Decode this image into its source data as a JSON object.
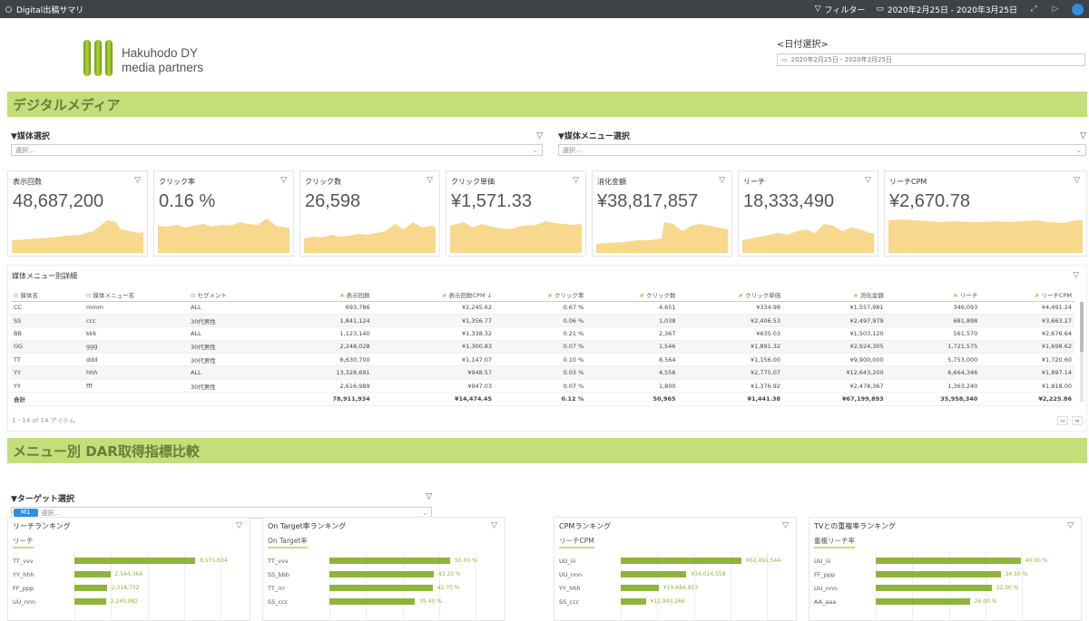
{
  "topbar": {
    "title": "Digital出稿サマリ",
    "filter_label": "フィルター",
    "date_range": "2020年2月25日 - 2020年3月25日"
  },
  "logo": {
    "line1": "Hakuhodo DY",
    "line2": "media partners"
  },
  "date_select": {
    "label": "<日付選択>",
    "value": "2020年2月25日 - 2020年3月25日"
  },
  "section1": {
    "title": "デジタルメディア"
  },
  "media_select": {
    "label": "▼媒体選択",
    "placeholder": "選択..."
  },
  "menu_select": {
    "label": "▼媒体メニュー選択",
    "placeholder": "選択..."
  },
  "kpis": [
    {
      "title": "表示回数",
      "value": "48,687,200"
    },
    {
      "title": "クリック率",
      "value": "0.16 %"
    },
    {
      "title": "クリック数",
      "value": "26,598"
    },
    {
      "title": "クリック単価",
      "value": "¥1,571.33"
    },
    {
      "title": "消化金額",
      "value": "¥38,817,857"
    },
    {
      "title": "リーチ",
      "value": "18,333,490"
    },
    {
      "title": "リーチCPM",
      "value": "¥2,670.78"
    }
  ],
  "table": {
    "title": "媒体メニュー別詳細",
    "headers": [
      "媒体名",
      "媒体メニュー名",
      "セグメント",
      "表示回数",
      "表示回数CPM ↓",
      "クリック率",
      "クリック数",
      "クリック単価",
      "消化金額",
      "リーチ",
      "リーチCPM"
    ],
    "rows": [
      [
        "CC",
        "mmm",
        "ALL",
        "693,786",
        "¥2,245.62",
        "0.67 %",
        "4,651",
        "¥334.98",
        "¥1,557,981",
        "346,093",
        "¥4,491.24"
      ],
      [
        "SS",
        "ccc",
        "30代男性",
        "1,841,124",
        "¥1,356.77",
        "0.06 %",
        "1,038",
        "¥2,406.53",
        "¥2,497,979",
        "681,898",
        "¥3,663.27"
      ],
      [
        "BB",
        "kkk",
        "ALL",
        "1,123,140",
        "¥1,338.32",
        "0.21 %",
        "2,367",
        "¥635.03",
        "¥1,503,120",
        "561,570",
        "¥2,676.64"
      ],
      [
        "GG",
        "ggg",
        "30代男性",
        "2,248,028",
        "¥1,300.83",
        "0.07 %",
        "1,546",
        "¥1,891.32",
        "¥2,924,305",
        "1,721,575",
        "¥1,698.62"
      ],
      [
        "TT",
        "ddd",
        "30代男性",
        "8,630,700",
        "¥1,147.07",
        "0.10 %",
        "8,564",
        "¥1,156.00",
        "¥9,900,000",
        "5,753,000",
        "¥1,720.60"
      ],
      [
        "YY",
        "hhh",
        "ALL",
        "13,328,691",
        "¥948.57",
        "0.03 %",
        "4,556",
        "¥2,775.07",
        "¥12,643,200",
        "6,664,346",
        "¥1,897.14"
      ],
      [
        "YY",
        "fff",
        "30代男性",
        "2,616,989",
        "¥947.03",
        "0.07 %",
        "1,800",
        "¥1,376.92",
        "¥2,478,367",
        "1,363,240",
        "¥1,818.00"
      ]
    ],
    "total": [
      "合計",
      "",
      "",
      "78,911,934",
      "¥14,474.45",
      "0.12 %",
      "50,965",
      "¥1,441.38",
      "¥67,199,893",
      "35,958,340",
      "¥2,225.86"
    ],
    "pager": "1 - 14 of 14 アイテム"
  },
  "section2": {
    "title": "メニュー別 DAR取得指標比較"
  },
  "target_select": {
    "label": "▼ターゲット選択",
    "chip": "M1",
    "placeholder": "選択..."
  },
  "rankings": [
    {
      "title": "リーチランキング",
      "tab": "リーチ",
      "items": [
        {
          "label": "TT_vvv",
          "value": "8,575,634",
          "frac": 1.0
        },
        {
          "label": "YY_hhh",
          "value": "2,544,364",
          "frac": 0.297
        },
        {
          "label": "FF_ppp",
          "value": "2,318,732",
          "frac": 0.27
        },
        {
          "label": "UU_nnn",
          "value": "2,240,982",
          "frac": 0.261
        }
      ]
    },
    {
      "title": "On Target率ランキング",
      "tab": "On Target率",
      "items": [
        {
          "label": "TT_vvv",
          "value": "50.00 %",
          "frac": 1.0
        },
        {
          "label": "SS_bbb",
          "value": "43.20 %",
          "frac": 0.864
        },
        {
          "label": "TT_rrr",
          "value": "42.70 %",
          "frac": 0.854
        },
        {
          "label": "SS_ccc",
          "value": "35.40 %",
          "frac": 0.708
        }
      ]
    },
    {
      "title": "CPMランキング",
      "tab": "リーチCPM",
      "items": [
        {
          "label": "UU_iii",
          "value": "¥62,491,544",
          "frac": 1.0
        },
        {
          "label": "UU_nnn",
          "value": "¥34,014,558",
          "frac": 0.544
        },
        {
          "label": "YY_hhh",
          "value": "¥19,684,913",
          "frac": 0.315
        },
        {
          "label": "SS_ccc",
          "value": "¥12,943,266",
          "frac": 0.207
        }
      ]
    },
    {
      "title": "TVとの重複率ランキング",
      "tab": "重複リーチ率",
      "items": [
        {
          "label": "UU_iii",
          "value": "40.00 %",
          "frac": 1.0
        },
        {
          "label": "FF_ppp",
          "value": "34.50 %",
          "frac": 0.862
        },
        {
          "label": "UU_nnn",
          "value": "32.00 %",
          "frac": 0.8
        },
        {
          "label": "AA_aaa",
          "value": "26.00 %",
          "frac": 0.65
        }
      ]
    }
  ],
  "colors": {
    "band": "#c4de7a",
    "bar": "#8fb43a",
    "spark": "#f8d88c",
    "accent": "#2e8fe0"
  },
  "icons": [
    "circle-icon",
    "filter-icon",
    "calendar-icon",
    "expand-icon",
    "play-icon",
    "share-icon"
  ]
}
